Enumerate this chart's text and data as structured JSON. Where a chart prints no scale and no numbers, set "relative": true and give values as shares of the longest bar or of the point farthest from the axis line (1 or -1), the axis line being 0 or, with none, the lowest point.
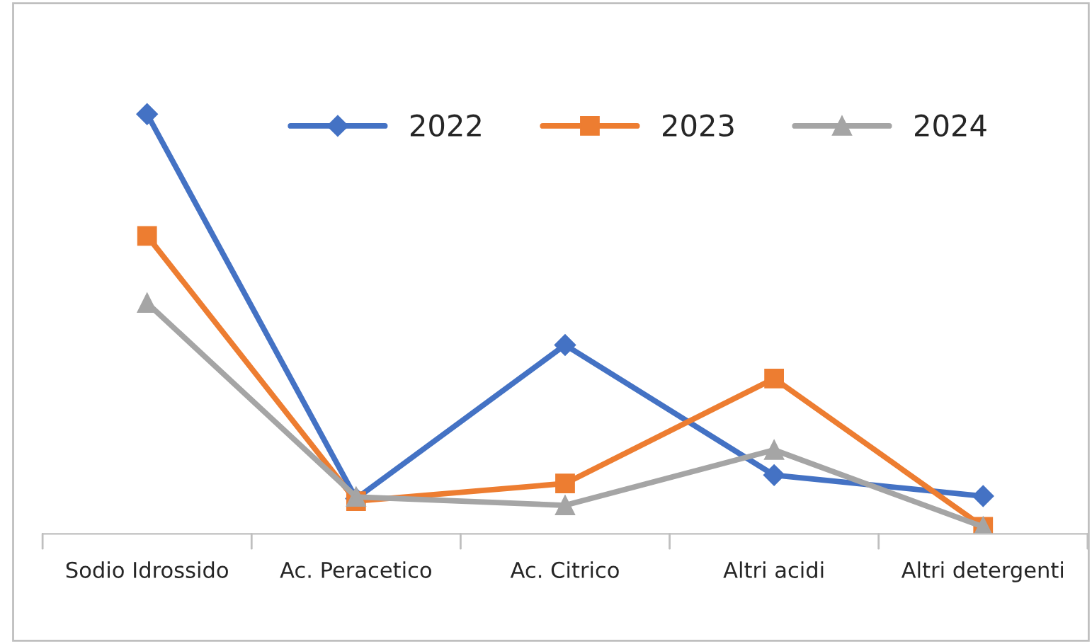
{
  "chart_data": {
    "type": "line",
    "relative": true,
    "categories": [
      "Sodio Idrossido",
      "Ac. Peracetico",
      "Ac. Citrico",
      "Altri acidi",
      "Altri detergenti"
    ],
    "series": [
      {
        "name": "2022",
        "color": "#4472c4",
        "marker": "diamond",
        "values": [
          1,
          0.084,
          0.45,
          0.14,
          0.09
        ]
      },
      {
        "name": "2023",
        "color": "#ed7d31",
        "marker": "square",
        "values": [
          0.71,
          0.078,
          0.12,
          0.37,
          0.017
        ]
      },
      {
        "name": "2024",
        "color": "#a5a5a5",
        "marker": "triangle",
        "values": [
          0.55,
          0.088,
          0.068,
          0.2,
          0.017
        ]
      }
    ],
    "legend": "top right",
    "grid": false,
    "line_style": "solid"
  }
}
